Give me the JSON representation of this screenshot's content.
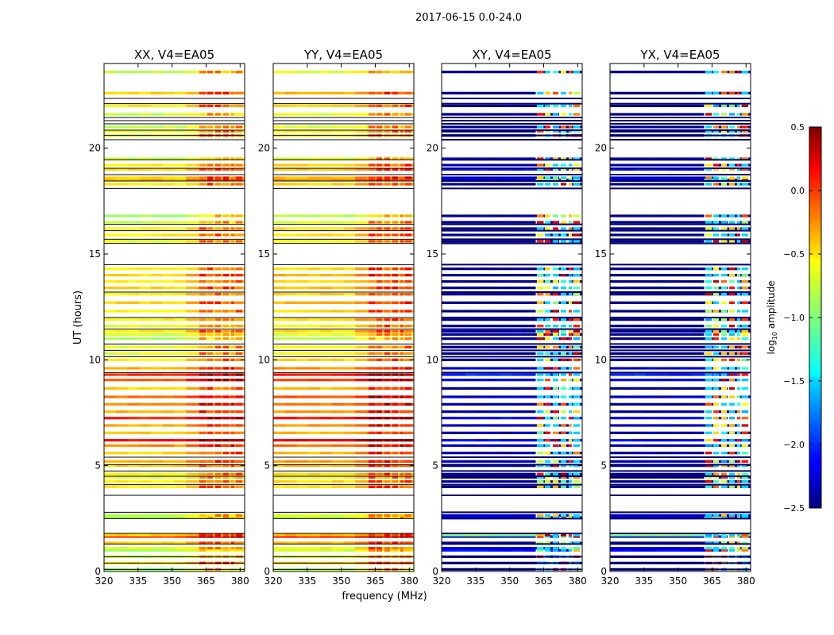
{
  "chart_data": {
    "type": "heatmap",
    "suptitle": "2017-06-15 0.0-24.0",
    "xlabel": "frequency (MHz)",
    "ylabel": "UT (hours)",
    "xlim": [
      320,
      382
    ],
    "ylim": [
      0,
      24
    ],
    "xticks": [
      320,
      335,
      350,
      365,
      380
    ],
    "yticks": [
      0,
      5,
      10,
      15,
      20
    ],
    "panels": [
      {
        "title": "XX, V4=EA05",
        "pol": "XX"
      },
      {
        "title": "YY, V4=EA05",
        "pol": "YY"
      },
      {
        "title": "XY, V4=EA05",
        "pol": "XY"
      },
      {
        "title": "YX, V4=EA05",
        "pol": "YX"
      }
    ],
    "colorbar": {
      "label": "log10 amplitude",
      "label_base": "log",
      "label_sub": "10",
      "label_rest": " amplitude",
      "range": [
        -2.5,
        0.5
      ],
      "ticks": [
        "0.5",
        "0.0",
        "−0.5",
        "−1.0",
        "−1.5",
        "−2.0",
        "−2.5"
      ],
      "tick_values": [
        0.5,
        0.0,
        -0.5,
        -1.0,
        -1.5,
        -2.0,
        -2.5
      ],
      "colormap": "jet"
    },
    "data_rows_ut": [
      0.1,
      0.4,
      0.7,
      1.0,
      1.1,
      1.35,
      1.65,
      1.72,
      2.55,
      2.65,
      4.0,
      4.25,
      4.45,
      4.6,
      5.0,
      5.2,
      5.6,
      5.95,
      6.2,
      6.55,
      6.9,
      7.25,
      7.55,
      7.9,
      8.25,
      8.65,
      9.05,
      9.3,
      9.6,
      10.0,
      10.3,
      10.6,
      11.0,
      11.2,
      11.35,
      11.6,
      11.9,
      12.3,
      12.7,
      13.1,
      13.4,
      13.7,
      14.0,
      14.3,
      15.6,
      15.9,
      16.2,
      16.5,
      16.8,
      18.3,
      18.5,
      18.6,
      19.0,
      19.2,
      19.5,
      20.6,
      20.8,
      21.0,
      21.6,
      22.0,
      22.6,
      23.6
    ],
    "data_levels": {
      "XX_broad": [
        -0.9,
        -0.6,
        -0.8,
        -0.9,
        -0.7,
        -0.5,
        0.0,
        -0.5,
        -0.9,
        -0.8,
        -0.6,
        -0.6,
        -0.7,
        -0.6,
        -0.5,
        -0.4,
        -0.5,
        -0.3,
        0.1,
        -0.5,
        -0.4,
        0.0,
        -0.4,
        -0.3,
        -0.2,
        -0.5,
        -0.1,
        0.0,
        -0.4,
        -0.6,
        -0.7,
        -0.7,
        -0.9,
        -0.8,
        -0.6,
        -0.7,
        -0.6,
        -0.6,
        -0.5,
        -0.6,
        -0.5,
        -0.6,
        -0.5,
        -0.6,
        -0.7,
        -0.6,
        -0.6,
        -0.8,
        -0.9,
        -0.6,
        -0.4,
        -0.5,
        -0.5,
        -0.6,
        -0.8,
        -0.7,
        -0.7,
        -0.8,
        -0.8,
        -0.6,
        -0.5,
        -0.8
      ],
      "XY_broad": [
        -2.5,
        -2.5,
        -2.5,
        -2.1,
        -2.2,
        -2.5,
        -2.3,
        -1.0,
        -2.2,
        -2.3,
        -2.5,
        -2.5,
        -2.5,
        -2.5,
        -2.4,
        -2.3,
        -2.4,
        -2.3,
        -2.1,
        -2.4,
        -2.3,
        -2.1,
        -2.4,
        -2.4,
        -2.3,
        -2.5,
        -2.2,
        -2.0,
        -2.3,
        -2.5,
        -2.5,
        -2.5,
        -2.5,
        -2.5,
        -2.4,
        -2.5,
        -2.5,
        -2.5,
        -2.5,
        -2.5,
        -2.5,
        -2.5,
        -2.5,
        -2.5,
        -2.5,
        -2.5,
        -2.5,
        -2.5,
        -2.5,
        -2.5,
        -2.3,
        -2.3,
        -2.1,
        -2.4,
        -2.3,
        -2.5,
        -2.5,
        -2.5,
        -2.5,
        -2.5,
        -2.5,
        -2.5
      ],
      "gap_lines_ut": [
        0.1,
        0.4,
        0.7,
        1.3,
        1.8,
        2.5,
        2.8,
        3.6,
        4.1,
        4.5,
        4.75,
        5.05,
        5.4,
        9.4,
        10.15,
        10.45,
        10.75,
        11.45,
        12.0,
        13.2,
        14.5,
        15.5,
        15.7,
        16.1,
        16.4,
        18.1,
        18.45,
        18.75,
        19.05,
        19.45,
        20.4,
        20.6,
        20.85,
        21.15,
        21.3,
        21.45,
        22.1,
        22.35
      ]
    }
  }
}
